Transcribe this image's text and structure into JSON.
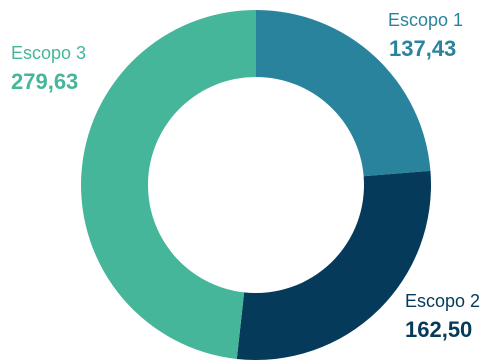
{
  "chart_data": {
    "type": "pie",
    "donut": true,
    "legend": "none",
    "slices": [
      {
        "name": "Escopo 1",
        "value": 137.43,
        "value_label": "137,43",
        "color": "#2a839c"
      },
      {
        "name": "Escopo 2",
        "value": 162.5,
        "value_label": "162,50",
        "color": "#063a5a"
      },
      {
        "name": "Escopo 3",
        "value": 279.63,
        "value_label": "279,63",
        "color": "#46b69a"
      }
    ]
  }
}
